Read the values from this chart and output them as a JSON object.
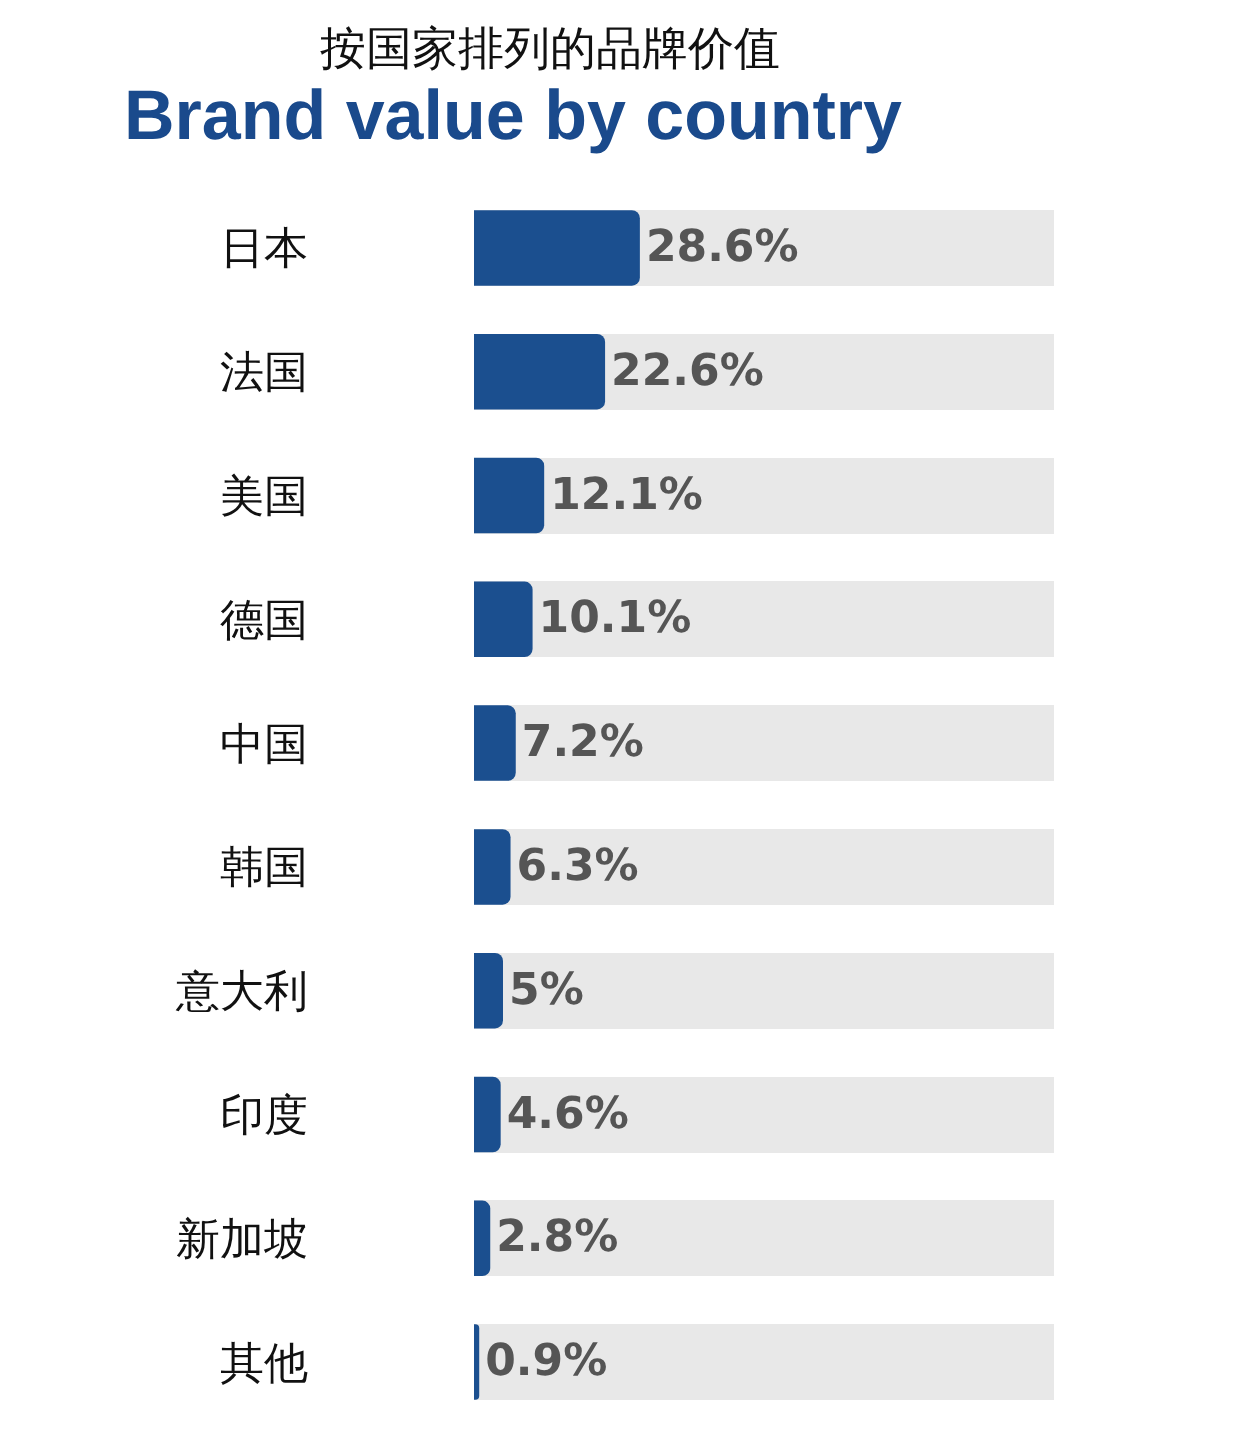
{
  "chart_data": {
    "type": "bar",
    "title": "Brand value by country",
    "subtitle": "按国家排列的品牌价值",
    "categories": [
      "日本",
      "法国",
      "美国",
      "德国",
      "中国",
      "韩国",
      "意大利",
      "印度",
      "新加坡",
      "其他"
    ],
    "orientation": "horizontal",
    "xlim": [
      0,
      100
    ],
    "tick_labels": "y",
    "grid": "y",
    "series": [
      {
        "color": "#1b4f8f",
        "values": [
          28.6,
          22.6,
          12.1,
          10.1,
          7.2,
          6.3,
          5,
          4.6,
          2.8,
          0.9
        ],
        "value_labels": [
          "28.6%",
          "22.6%",
          "12.1%",
          "10.1%",
          "7.2%",
          "6.3%",
          "5%",
          "4.6%",
          "2.8%",
          "0.9%"
        ]
      }
    ]
  }
}
